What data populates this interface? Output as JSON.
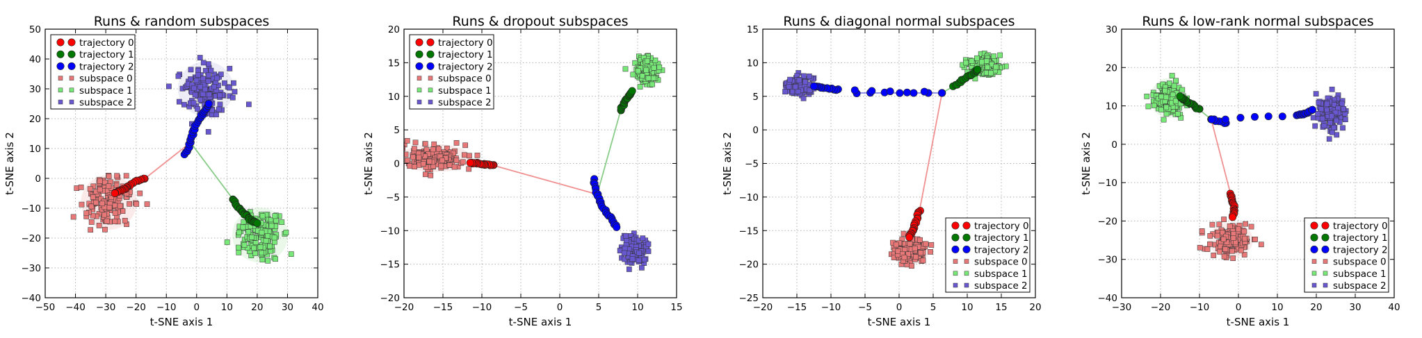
{
  "colors": {
    "trajectory": [
      "#ff0000",
      "#007700",
      "#0000ff"
    ],
    "subspace": [
      "#e87878",
      "#78e878",
      "#6858d0"
    ],
    "line": [
      "#f09090",
      "#88cc88",
      "#8888e8"
    ],
    "hull": [
      "#f4c4c4",
      "#c4ecc4",
      "#cccceb"
    ]
  },
  "chart_data": [
    {
      "type": "scatter",
      "title": "Runs & random subspaces",
      "xlabel": "t-SNE axis 1",
      "ylabel": "t-SNE axis 2",
      "xlim": [
        -50,
        40
      ],
      "ylim": [
        -40,
        50
      ],
      "xticks": [
        -50,
        -40,
        -30,
        -20,
        -10,
        0,
        10,
        20,
        30,
        40
      ],
      "yticks": [
        -40,
        -30,
        -20,
        -10,
        0,
        10,
        20,
        30,
        40,
        50
      ],
      "grid": true,
      "legend_position": "top-left",
      "legend": [
        "trajectory 0",
        "trajectory 1",
        "trajectory 2",
        "subspace 0",
        "subspace 1",
        "subspace 2"
      ],
      "start_point": [
        -2,
        12
      ],
      "trajectories": [
        {
          "name": "trajectory 0",
          "path": [
            [
              -2,
              12
            ],
            [
              -17,
              0
            ],
            [
              -20,
              -1
            ],
            [
              -23,
              -3
            ],
            [
              -25,
              -4
            ],
            [
              -27,
              -5
            ]
          ]
        },
        {
          "name": "trajectory 1",
          "path": [
            [
              -2,
              12
            ],
            [
              12,
              -7
            ],
            [
              14,
              -10
            ],
            [
              16,
              -12
            ],
            [
              18,
              -14
            ],
            [
              20,
              -15
            ]
          ]
        },
        {
          "name": "trajectory 2",
          "path": [
            [
              -4,
              8
            ],
            [
              -2,
              12
            ],
            [
              -1,
              16
            ],
            [
              1,
              20
            ],
            [
              3,
              23
            ],
            [
              4,
              25
            ]
          ]
        }
      ],
      "subspaces": [
        {
          "name": "subspace 0",
          "center": [
            -29,
            -8
          ],
          "spread": [
            8,
            8
          ]
        },
        {
          "name": "subspace 1",
          "center": [
            21,
            -19
          ],
          "spread": [
            8,
            8
          ]
        },
        {
          "name": "subspace 2",
          "center": [
            3,
            30
          ],
          "spread": [
            8,
            8
          ]
        }
      ]
    },
    {
      "type": "scatter",
      "title": "Runs & dropout subspaces",
      "xlabel": "t-SNE axis 1",
      "ylabel": "t-SNE axis 2",
      "xlim": [
        -20,
        15
      ],
      "ylim": [
        -20,
        20
      ],
      "xticks": [
        -20,
        -15,
        -10,
        -5,
        0,
        5,
        10,
        15
      ],
      "yticks": [
        -20,
        -15,
        -10,
        -5,
        0,
        5,
        10,
        15,
        20
      ],
      "grid": true,
      "legend_position": "top-left",
      "legend": [
        "trajectory 0",
        "trajectory 1",
        "trajectory 2",
        "subspace 0",
        "subspace 1",
        "subspace 2"
      ],
      "start_point": [
        4.8,
        -4.6
      ],
      "trajectories": [
        {
          "name": "trajectory 0",
          "path": [
            [
              4.8,
              -4.6
            ],
            [
              -8.5,
              -0.3
            ],
            [
              -9.5,
              -0.1
            ],
            [
              -10.5,
              0
            ],
            [
              -11.5,
              0.1
            ]
          ]
        },
        {
          "name": "trajectory 1",
          "path": [
            [
              4.8,
              -4.6
            ],
            [
              7.8,
              7.8
            ],
            [
              8.3,
              9
            ],
            [
              8.8,
              10
            ],
            [
              9.3,
              10.8
            ]
          ]
        },
        {
          "name": "trajectory 2",
          "path": [
            [
              4.4,
              -2.4
            ],
            [
              4.8,
              -4.6
            ],
            [
              5.5,
              -6.5
            ],
            [
              6.5,
              -8
            ],
            [
              7.3,
              -9.5
            ]
          ]
        }
      ],
      "subspaces": [
        {
          "name": "subspace 0",
          "center": [
            -16,
            0.8
          ],
          "spread": [
            4,
            1.8
          ]
        },
        {
          "name": "subspace 1",
          "center": [
            11,
            14
          ],
          "spread": [
            1.6,
            2
          ]
        },
        {
          "name": "subspace 2",
          "center": [
            9.5,
            -13
          ],
          "spread": [
            1.8,
            1.8
          ]
        }
      ]
    },
    {
      "type": "scatter",
      "title": "Runs & diagonal normal subspaces",
      "xlabel": "t-SNE axis 1",
      "ylabel": "t-SNE axis 2",
      "xlim": [
        -20,
        20
      ],
      "ylim": [
        -25,
        15
      ],
      "xticks": [
        -20,
        -15,
        -10,
        -5,
        0,
        5,
        10,
        15,
        20
      ],
      "yticks": [
        -25,
        -20,
        -15,
        -10,
        -5,
        0,
        5,
        10,
        15
      ],
      "grid": true,
      "legend_position": "bottom-right",
      "legend": [
        "trajectory 0",
        "trajectory 1",
        "trajectory 2",
        "subspace 0",
        "subspace 1",
        "subspace 2"
      ],
      "start_point": [
        6.3,
        5.5
      ],
      "trajectories": [
        {
          "name": "trajectory 0",
          "path": [
            [
              6.3,
              5.5
            ],
            [
              3,
              -12
            ],
            [
              2.5,
              -13.5
            ],
            [
              2,
              -15
            ],
            [
              1.5,
              -16
            ]
          ]
        },
        {
          "name": "trajectory 1",
          "path": [
            [
              6.3,
              5.5
            ],
            [
              8,
              6.5
            ],
            [
              9.5,
              7.5
            ],
            [
              11,
              8.5
            ],
            [
              11.5,
              9
            ]
          ]
        },
        {
          "name": "trajectory 2",
          "path": [
            [
              -6.3,
              5.5
            ],
            [
              6.3,
              5.5
            ],
            [
              -9,
              6
            ],
            [
              -11,
              6.2
            ],
            [
              -12.5,
              6.5
            ]
          ]
        }
      ],
      "subspaces": [
        {
          "name": "subspace 0",
          "center": [
            1.5,
            -18
          ],
          "spread": [
            2.5,
            1.8
          ]
        },
        {
          "name": "subspace 1",
          "center": [
            12.5,
            9.5
          ],
          "spread": [
            2.3,
            1.5
          ]
        },
        {
          "name": "subspace 2",
          "center": [
            -14.5,
            6.5
          ],
          "spread": [
            2,
            1.3
          ]
        }
      ]
    },
    {
      "type": "scatter",
      "title": "Runs & low-rank normal subspaces",
      "xlabel": "t-SNE axis 1",
      "ylabel": "t-SNE axis 2",
      "xlim": [
        -30,
        40
      ],
      "ylim": [
        -40,
        30
      ],
      "xticks": [
        -30,
        -20,
        -10,
        0,
        10,
        20,
        30,
        40
      ],
      "yticks": [
        -40,
        -30,
        -20,
        -10,
        0,
        10,
        20,
        30
      ],
      "grid": true,
      "legend_position": "bottom-right",
      "legend": [
        "trajectory 0",
        "trajectory 1",
        "trajectory 2",
        "subspace 0",
        "subspace 1",
        "subspace 2"
      ],
      "start_point": [
        -7,
        6.5
      ],
      "trajectories": [
        {
          "name": "trajectory 0",
          "path": [
            [
              -7,
              6.5
            ],
            [
              -2,
              -13
            ],
            [
              -1.5,
              -15
            ],
            [
              -1,
              -17
            ],
            [
              -1.5,
              -19
            ]
          ]
        },
        {
          "name": "trajectory 1",
          "path": [
            [
              -7,
              6.5
            ],
            [
              -10,
              9
            ],
            [
              -12,
              10.5
            ],
            [
              -14,
              11.5
            ],
            [
              -15,
              12.5
            ]
          ]
        },
        {
          "name": "trajectory 2",
          "path": [
            [
              -3,
              5.5
            ],
            [
              -7,
              6.5
            ],
            [
              15,
              7.5
            ],
            [
              17,
              8
            ],
            [
              19,
              9
            ]
          ]
        }
      ],
      "subspaces": [
        {
          "name": "subspace 0",
          "center": [
            -2,
            -25
          ],
          "spread": [
            5,
            4
          ]
        },
        {
          "name": "subspace 1",
          "center": [
            -18,
            12
          ],
          "spread": [
            4,
            4.5
          ]
        },
        {
          "name": "subspace 2",
          "center": [
            24,
            8
          ],
          "spread": [
            3.5,
            4.5
          ]
        }
      ]
    }
  ]
}
